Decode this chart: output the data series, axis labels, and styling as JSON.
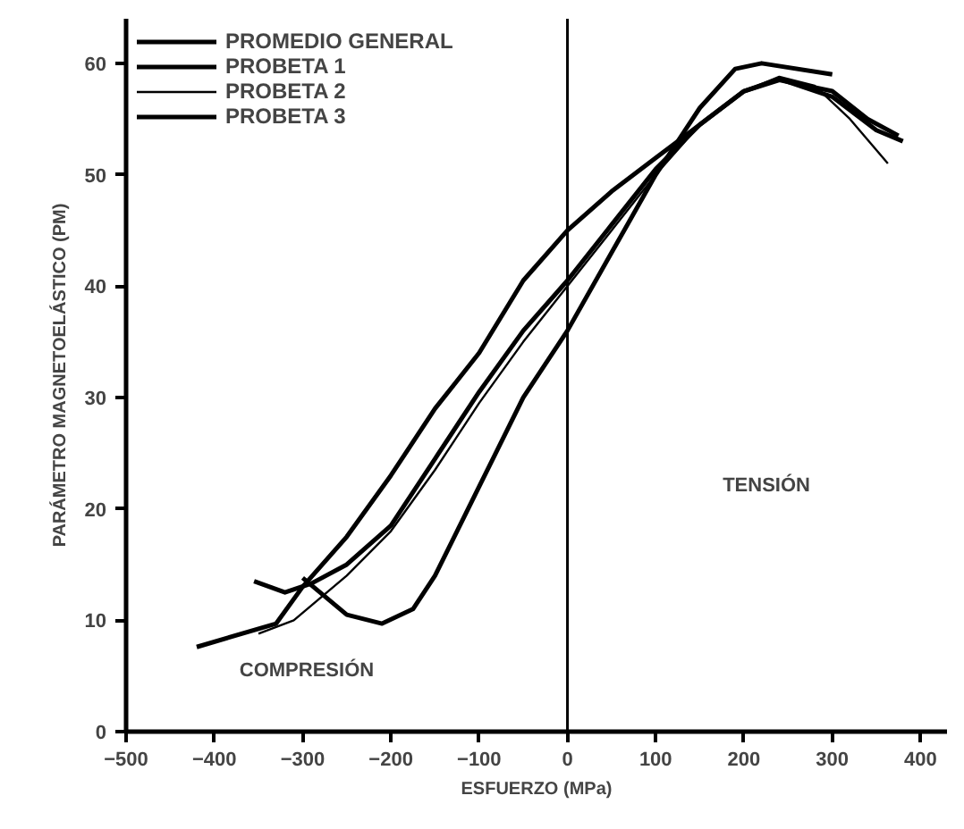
{
  "chart_data": {
    "type": "line",
    "xlabel": "ESFUERZO (MPa)",
    "ylabel": "PARÁMETRO MAGNETOELÁSTICO (PM)",
    "xlim": [
      -500,
      430
    ],
    "ylim": [
      0,
      64
    ],
    "xticks": [
      -500,
      -400,
      -300,
      -200,
      -100,
      0,
      100,
      200,
      300,
      400
    ],
    "yticks": [
      0,
      10,
      20,
      30,
      40,
      50,
      60
    ],
    "annotations": [
      "COMPRESIÓN",
      "TENSIÓN"
    ],
    "ref_lines": [
      {
        "axis": "x",
        "value": 0,
        "color": "#000000"
      }
    ],
    "legend": "top left",
    "grid": false,
    "marker": "none",
    "line_style": "solid",
    "series": [
      {
        "name": "PROMEDIO GENERAL",
        "color": "#000000",
        "x": [
          -355,
          -320,
          -290,
          -250,
          -200,
          -150,
          -100,
          -50,
          0,
          50,
          100,
          150,
          200,
          240,
          300,
          350,
          380
        ],
        "values": [
          13.5,
          12.5,
          13.3,
          15,
          18.5,
          24.5,
          30.5,
          36,
          40.5,
          45.5,
          50.5,
          54.5,
          57.5,
          58.6,
          57,
          54,
          53
        ]
      },
      {
        "name": "PROBETA 1",
        "color": "#000000",
        "x": [
          -420,
          -330,
          -300,
          -250,
          -200,
          -150,
          -100,
          -50,
          0,
          50,
          100,
          150,
          200,
          240,
          300,
          340,
          375
        ],
        "values": [
          7.6,
          9.7,
          13,
          17.5,
          23,
          29,
          34,
          40.5,
          45,
          48.5,
          51.5,
          54.5,
          57.5,
          58.5,
          57.5,
          55,
          53.5
        ]
      },
      {
        "name": "PROBETA 2",
        "color": "#000000",
        "x": [
          -350,
          -310,
          -250,
          -200,
          -150,
          -100,
          -50,
          0,
          50,
          100,
          150,
          200,
          240,
          280,
          320,
          363
        ],
        "values": [
          8.8,
          10,
          14,
          18,
          23.5,
          29.5,
          35,
          40,
          45,
          50,
          54.5,
          57.5,
          58.8,
          58,
          55,
          51
        ]
      },
      {
        "name": "PROBETA 3",
        "color": "#000000",
        "x": [
          -300,
          -250,
          -210,
          -175,
          -150,
          -100,
          -50,
          0,
          50,
          100,
          150,
          190,
          220,
          300
        ],
        "values": [
          13.8,
          10.5,
          9.7,
          11,
          14,
          22,
          30,
          36,
          43,
          50,
          56,
          59.5,
          60,
          59
        ]
      }
    ]
  }
}
